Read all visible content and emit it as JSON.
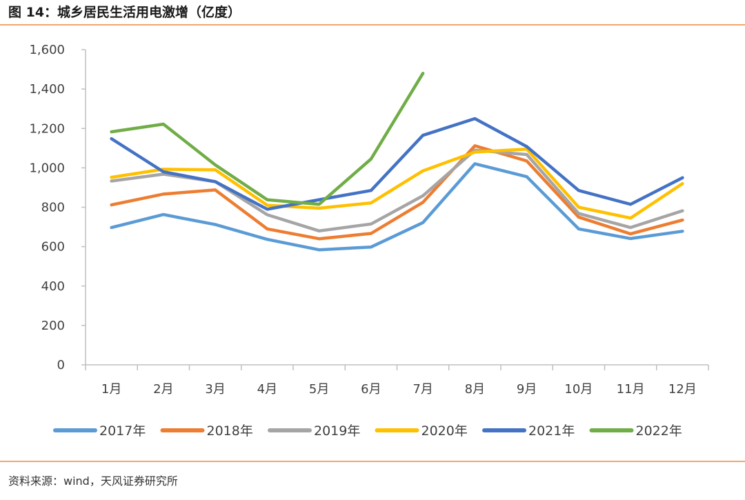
{
  "header": {
    "title": "图 14：城乡居民生活用电激增（亿度）"
  },
  "footer": {
    "source": "资料来源：wind，天风证券研究所"
  },
  "chart_data": {
    "type": "line",
    "title": "",
    "xlabel": "",
    "ylabel": "",
    "ylim": [
      0,
      1600
    ],
    "yticks": [
      "0",
      "200",
      "400",
      "600",
      "800",
      "1,000",
      "1,200",
      "1,400",
      "1,600"
    ],
    "ytick_values": [
      0,
      200,
      400,
      600,
      800,
      1000,
      1200,
      1400,
      1600
    ],
    "categories": [
      "1月",
      "2月",
      "3月",
      "4月",
      "5月",
      "6月",
      "7月",
      "8月",
      "9月",
      "10月",
      "11月",
      "12月"
    ],
    "grid": false,
    "legend_position": "bottom",
    "series": [
      {
        "name": "2017年",
        "color": "#5b9bd5",
        "values": [
          697,
          763,
          712,
          637,
          584,
          598,
          722,
          1021,
          955,
          690,
          641,
          678
        ]
      },
      {
        "name": "2018年",
        "color": "#ed7d31",
        "values": [
          812,
          867,
          888,
          690,
          640,
          667,
          825,
          1112,
          1035,
          750,
          665,
          735
        ]
      },
      {
        "name": "2019年",
        "color": "#a5a5a5",
        "values": [
          933,
          968,
          930,
          762,
          680,
          715,
          858,
          1090,
          1068,
          768,
          697,
          782
        ]
      },
      {
        "name": "2020年",
        "color": "#ffc000",
        "values": [
          952,
          993,
          990,
          810,
          795,
          822,
          985,
          1080,
          1095,
          800,
          745,
          920
        ]
      },
      {
        "name": "2021年",
        "color": "#4472c4",
        "values": [
          1148,
          980,
          930,
          790,
          838,
          885,
          1165,
          1250,
          1108,
          885,
          815,
          950
        ]
      },
      {
        "name": "2022年",
        "color": "#70ad47",
        "values": [
          1183,
          1222,
          1015,
          838,
          815,
          1045,
          1480,
          null,
          null,
          null,
          null,
          null
        ]
      }
    ]
  }
}
